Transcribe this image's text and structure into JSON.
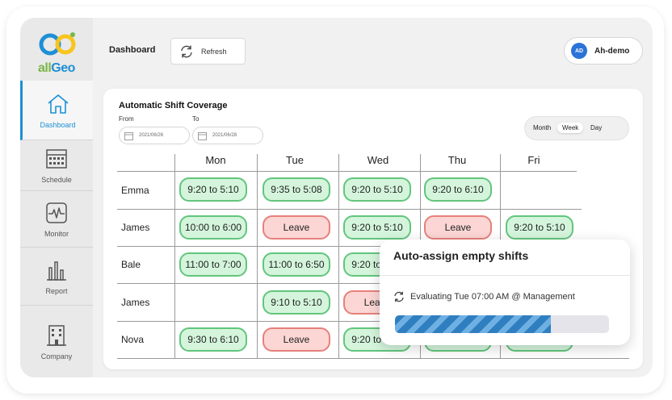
{
  "brand": {
    "logo_text_a": "all",
    "logo_text_b": "Geo"
  },
  "sidebar": {
    "items": [
      {
        "label": "Dashboard",
        "icon": "home-icon"
      },
      {
        "label": "Schedule",
        "icon": "calendar-icon"
      },
      {
        "label": "Monitor",
        "icon": "monitor-icon"
      },
      {
        "label": "Report",
        "icon": "bar-chart-icon"
      },
      {
        "label": "Company",
        "icon": "building-icon"
      }
    ]
  },
  "header": {
    "title": "Dashboard",
    "refresh_label": "Refresh"
  },
  "user": {
    "initials": "AD",
    "name": "Ah-demo"
  },
  "coverage": {
    "title": "Automatic Shift Coverage",
    "from_label": "From",
    "to_label": "To",
    "from_value": "2021/06/26",
    "to_value": "2021/06/28",
    "views": [
      "Month",
      "Week",
      "Day"
    ],
    "selected_view": "Week",
    "days": [
      "Mon",
      "Tue",
      "Wed",
      "Thu",
      "Fri"
    ],
    "rows": [
      {
        "name": "Emma",
        "shifts": [
          {
            "text": "9:20 to 5:10",
            "type": "work"
          },
          {
            "text": "9:35 to 5:08",
            "type": "work"
          },
          {
            "text": "9:20 to 5:10",
            "type": "work"
          },
          {
            "text": "9:20 to 6:10",
            "type": "work"
          },
          null
        ]
      },
      {
        "name": "James",
        "shifts": [
          {
            "text": "10:00 to 6:00",
            "type": "work"
          },
          {
            "text": "Leave",
            "type": "leave"
          },
          {
            "text": "9:20 to 5:10",
            "type": "work"
          },
          {
            "text": "Leave",
            "type": "leave"
          },
          {
            "text": "9:20 to 5:10",
            "type": "work"
          }
        ]
      },
      {
        "name": "Bale",
        "shifts": [
          {
            "text": "11:00 to 7:00",
            "type": "work"
          },
          {
            "text": "11:00 to 6:50",
            "type": "work"
          },
          {
            "text": "9:20 to 5:10",
            "type": "work"
          },
          null,
          null
        ]
      },
      {
        "name": "James",
        "shifts": [
          null,
          {
            "text": "9:10 to 5:10",
            "type": "work"
          },
          {
            "text": "Leave",
            "type": "leave"
          },
          null,
          null
        ]
      },
      {
        "name": "Nova",
        "shifts": [
          {
            "text": "9:30 to 6:10",
            "type": "work"
          },
          {
            "text": "Leave",
            "type": "leave"
          },
          {
            "text": "9:20 to 5:10",
            "type": "work"
          },
          {
            "text": "",
            "type": "work"
          },
          {
            "text": "",
            "type": "work"
          }
        ]
      }
    ]
  },
  "auto_assign": {
    "title": "Auto-assign empty shifts",
    "status": "Evaluating Tue 07:00 AM @ Management",
    "progress": 0.73
  },
  "colors": {
    "accent": "#1e8fd6",
    "work_bg": "#d4f5dc",
    "work_border": "#62c57d",
    "leave_bg": "#fbd6d4",
    "leave_border": "#e6807b"
  }
}
